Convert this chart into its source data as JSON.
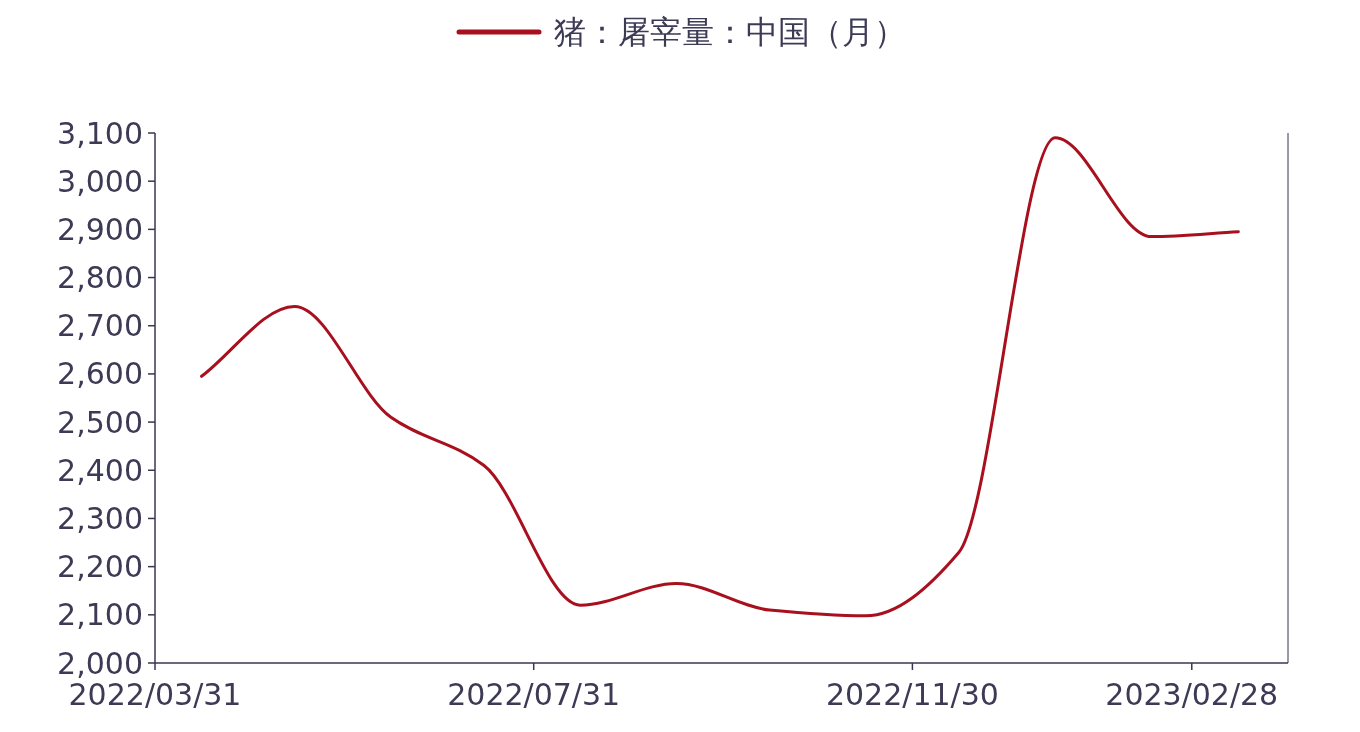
{
  "chart_data": {
    "type": "line",
    "x": [
      "2022-04-15",
      "2022-05-15",
      "2022-06-15",
      "2022-07-15",
      "2022-08-15",
      "2022-09-15",
      "2022-10-15",
      "2022-11-15",
      "2022-12-15",
      "2023-01-15",
      "2023-02-15",
      "2023-03-15"
    ],
    "series": [
      {
        "name": "猪：屠宰量：中国（月）",
        "color": "#a8101e",
        "values": [
          2595,
          2740,
          2510,
          2410,
          2120,
          2165,
          2110,
          2098,
          2230,
          3090,
          2885,
          2895
        ]
      }
    ],
    "xlim": [
      "2022-03-31",
      "2023-03-31"
    ],
    "xticks": [
      {
        "value": "2022-03-31",
        "label": "2022/03/31"
      },
      {
        "value": "2022-07-31",
        "label": "2022/07/31"
      },
      {
        "value": "2022-11-30",
        "label": "2022/11/30"
      },
      {
        "value": "2023-02-28",
        "label": "2023/02/28"
      }
    ],
    "ylim": [
      2000,
      3100
    ],
    "yticks": [
      {
        "value": 2000,
        "label": "2,000"
      },
      {
        "value": 2100,
        "label": "2,100"
      },
      {
        "value": 2200,
        "label": "2,200"
      },
      {
        "value": 2300,
        "label": "2,300"
      },
      {
        "value": 2400,
        "label": "2,400"
      },
      {
        "value": 2500,
        "label": "2,500"
      },
      {
        "value": 2600,
        "label": "2,600"
      },
      {
        "value": 2700,
        "label": "2,700"
      },
      {
        "value": 2800,
        "label": "2,800"
      },
      {
        "value": 2900,
        "label": "2,900"
      },
      {
        "value": 3000,
        "label": "3,000"
      },
      {
        "value": 3100,
        "label": "3,100"
      }
    ],
    "grid": false,
    "legend": "top",
    "marker": "none",
    "line_style": "solid"
  }
}
